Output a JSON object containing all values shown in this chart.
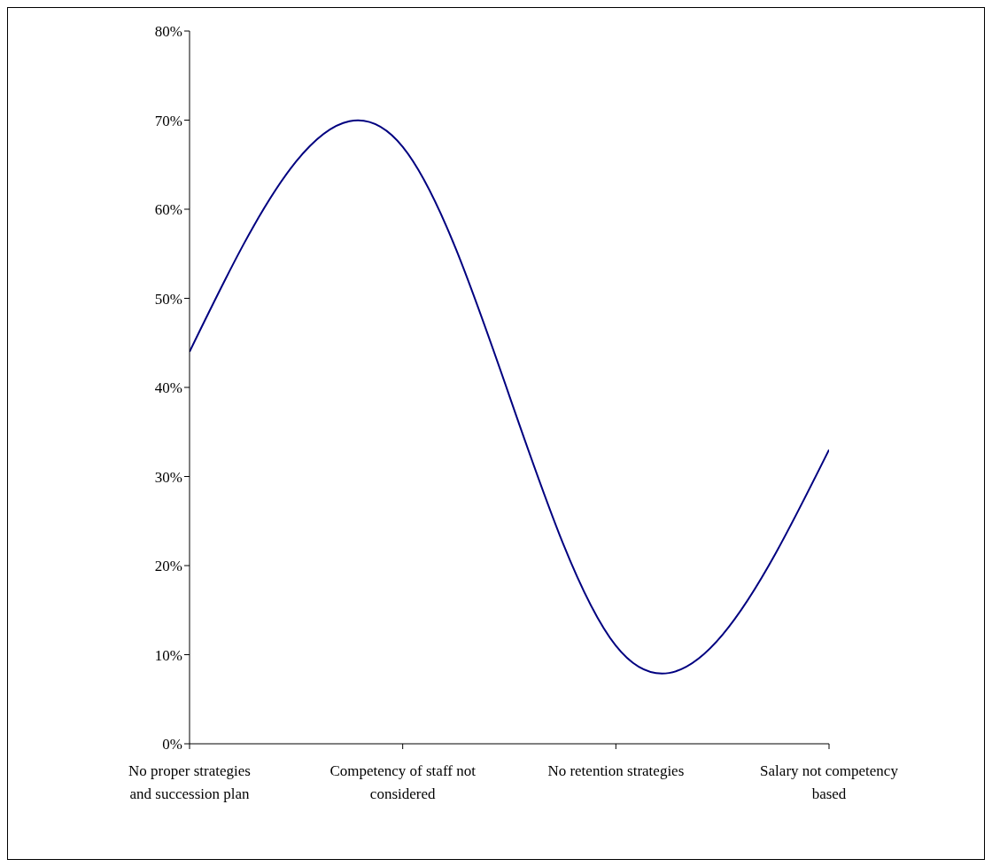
{
  "chart_data": {
    "type": "line",
    "categories": [
      "No proper strategies and succession plan",
      "Competency of staff not considered",
      "No retention strategies",
      "Salary not competency based"
    ],
    "values": [
      44,
      67,
      11,
      33
    ],
    "color": "#000080",
    "ylim": [
      0,
      80
    ],
    "yticks": [
      {
        "value": 0,
        "label": "0%"
      },
      {
        "value": 10,
        "label": "10%"
      },
      {
        "value": 20,
        "label": "20%"
      },
      {
        "value": 30,
        "label": "30%"
      },
      {
        "value": 40,
        "label": "40%"
      },
      {
        "value": 50,
        "label": "50%"
      },
      {
        "value": 60,
        "label": "60%"
      },
      {
        "value": 70,
        "label": "70%"
      },
      {
        "value": 80,
        "label": "80%"
      }
    ],
    "grid": false,
    "legend": false,
    "marker": "none",
    "line_style": "solid"
  }
}
